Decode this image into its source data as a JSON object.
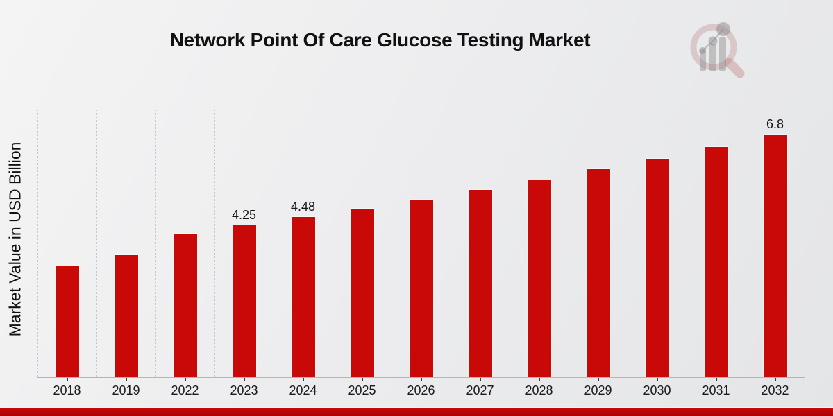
{
  "header": {
    "title": "Network Point Of Care Glucose Testing Market",
    "logo_name": "market-research-magnifier-logo"
  },
  "chart_data": {
    "type": "bar",
    "title": "Network Point Of Care Glucose Testing Market",
    "xlabel": "",
    "ylabel": "Market Value in USD Billion",
    "categories": [
      "2018",
      "2019",
      "2022",
      "2023",
      "2024",
      "2025",
      "2026",
      "2027",
      "2028",
      "2029",
      "2030",
      "2031",
      "2032"
    ],
    "values": [
      3.1,
      3.42,
      4.03,
      4.25,
      4.48,
      4.72,
      4.97,
      5.24,
      5.52,
      5.82,
      6.13,
      6.45,
      6.8
    ],
    "point_labels": [
      "",
      "",
      "",
      "4.25",
      "4.48",
      "",
      "",
      "",
      "",
      "",
      "",
      "",
      "6.8"
    ],
    "ylim": [
      0,
      7.5
    ],
    "grid": "vertical-dotted",
    "legend": "none",
    "colors": {
      "bar": "#c90808",
      "bar_edge": "#ffffff",
      "gridline": "#c7c7c7",
      "axis_line": "#b5b5b5",
      "text": "#1a1a1a",
      "footer_band": "#b30505",
      "logo_pink": "#d9b6b6",
      "logo_gray": "#b9b9b9"
    }
  }
}
